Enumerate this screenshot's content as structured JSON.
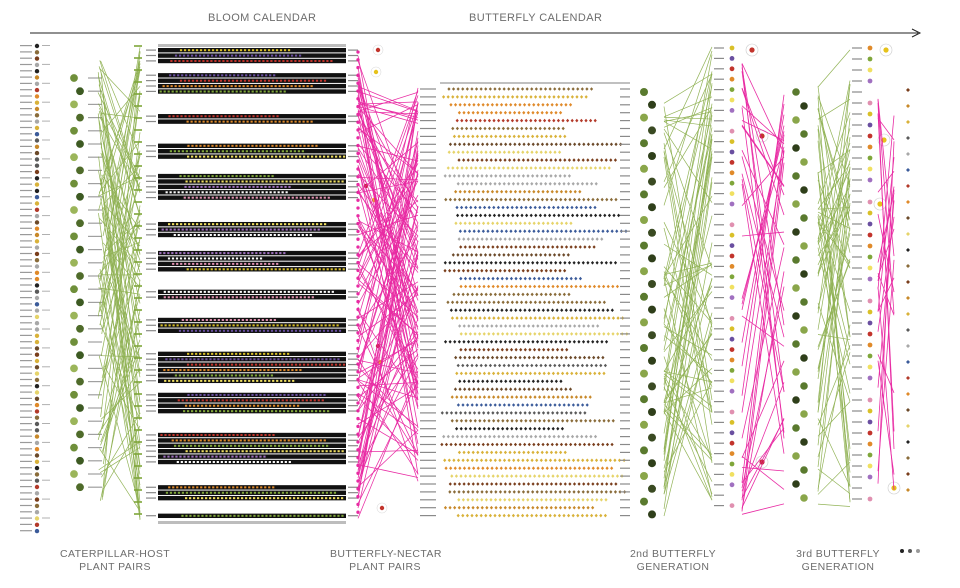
{
  "headers": {
    "bloom_calendar": "BLOOM CALENDAR",
    "butterfly_calendar": "BUTTERFLY CALENDAR"
  },
  "footers": {
    "caterpillar_host": [
      "CATERPILLAR-HOST",
      "PLANT PAIRS"
    ],
    "butterfly_nectar": [
      "BUTTERFLY-NECTAR",
      "PLANT PAIRS"
    ],
    "second_generation": [
      "2nd BUTTERFLY",
      "GENERATION"
    ],
    "third_generation": [
      "3rd BUTTERFLY",
      "GENERATION"
    ]
  },
  "colors": {
    "host_link": "#7fa63a",
    "nectar_link": "#e6159a",
    "calendar_band": "#111111",
    "text": "#6d6d6d",
    "arrow": "#222222"
  },
  "icons": [
    "timeline-arrow-icon",
    "pagination-dots-icon"
  ]
}
